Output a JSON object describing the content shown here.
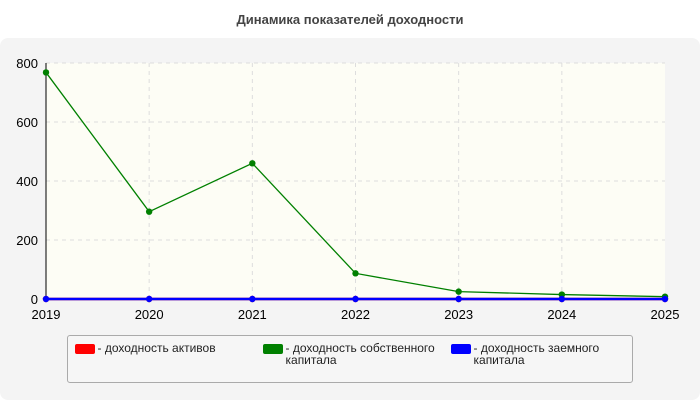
{
  "chart_data": {
    "type": "line",
    "title": "Динамика показателей доходности",
    "categories": [
      "2019",
      "2020",
      "2021",
      "2022",
      "2023",
      "2024",
      "2025"
    ],
    "series": [
      {
        "name": "- доходность активов",
        "color": "#ff0000",
        "values": [
          0,
          0,
          0,
          0,
          0,
          0,
          0
        ]
      },
      {
        "name": "- доходность собственного капитала",
        "color": "#008000",
        "values": [
          768,
          296,
          460,
          87,
          25,
          15,
          8
        ]
      },
      {
        "name": "- доходность заемного капитала",
        "color": "#0000ff",
        "values": [
          0,
          0,
          0,
          0,
          0,
          0,
          0
        ]
      }
    ],
    "ylim": [
      0,
      800
    ],
    "yticks": [
      0,
      200,
      400,
      600,
      800
    ],
    "grid": true
  }
}
